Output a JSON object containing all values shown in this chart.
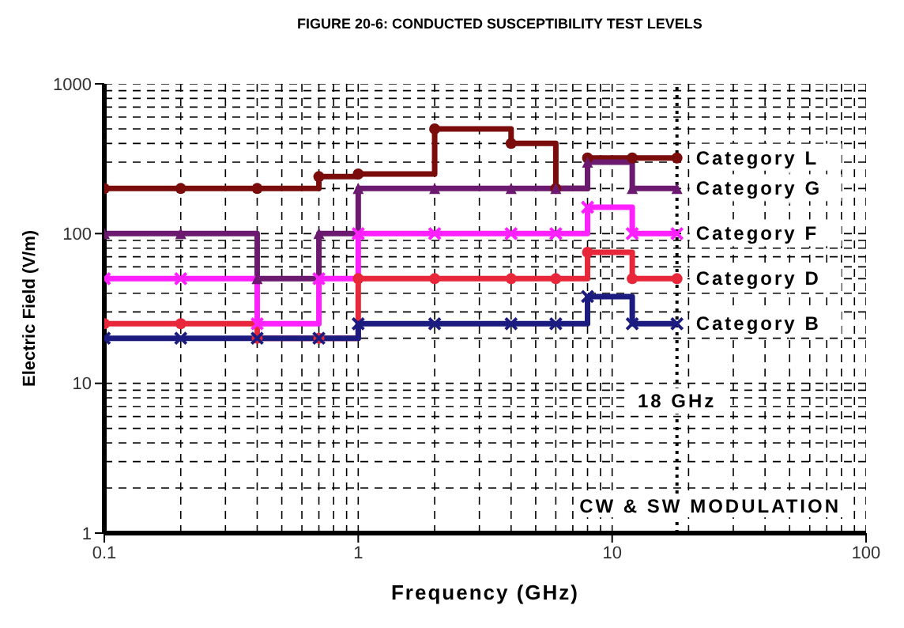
{
  "chart_data": {
    "type": "step",
    "title": "FIGURE 20-6: CONDUCTED SUSCEPTIBILITY TEST LEVELS",
    "xlabel": "Frequency (GHz)",
    "ylabel": "Electric Field (V/m)",
    "log": "xy",
    "xlim": [
      0.1,
      100
    ],
    "ylim": [
      1,
      1000
    ],
    "xticks": [
      0.1,
      1,
      10,
      100
    ],
    "yticks": [
      1,
      10,
      100,
      1000
    ],
    "grid": true,
    "line_style": "solid",
    "series": [
      {
        "name": "Category L",
        "color": "#7a0c0c",
        "marker": "circle",
        "x": [
          0.1,
          0.2,
          0.4,
          0.7,
          1,
          2,
          4,
          6,
          8,
          12,
          18
        ],
        "values": [
          200,
          200,
          200,
          240,
          250,
          500,
          400,
          200,
          320,
          320,
          320
        ]
      },
      {
        "name": "Category G",
        "color": "#6c1a70",
        "marker": "triangle",
        "x": [
          0.1,
          0.2,
          0.4,
          0.7,
          1,
          2,
          4,
          6,
          8,
          12,
          18
        ],
        "values": [
          100,
          100,
          50,
          100,
          200,
          200,
          200,
          200,
          300,
          200,
          200
        ]
      },
      {
        "name": "Category F",
        "color": "#ff20ff",
        "marker": "cross",
        "x": [
          0.1,
          0.2,
          0.4,
          0.7,
          1,
          2,
          4,
          6,
          8,
          12,
          18
        ],
        "values": [
          50,
          50,
          25,
          50,
          100,
          100,
          100,
          100,
          150,
          100,
          100
        ]
      },
      {
        "name": "Category D",
        "color": "#e8283a",
        "marker": "circle",
        "x": [
          0.1,
          0.2,
          0.4,
          0.7,
          1,
          2,
          4,
          6,
          8,
          12,
          18
        ],
        "values": [
          25,
          25,
          20,
          20,
          50,
          50,
          50,
          50,
          75,
          50,
          50
        ]
      },
      {
        "name": "Category B",
        "color": "#1c1c80",
        "marker": "cross",
        "x": [
          0.1,
          0.2,
          0.4,
          0.7,
          1,
          2,
          4,
          6,
          8,
          12,
          18
        ],
        "values": [
          20,
          20,
          20,
          20,
          25,
          25,
          25,
          25,
          38,
          25,
          25
        ]
      }
    ],
    "ref_lines": [
      {
        "axis": "x",
        "value": 18,
        "label": "18 GHz",
        "line_style": "dotted",
        "color": "#000000"
      }
    ],
    "annotations": [
      "CW & SW MODULATION"
    ]
  }
}
